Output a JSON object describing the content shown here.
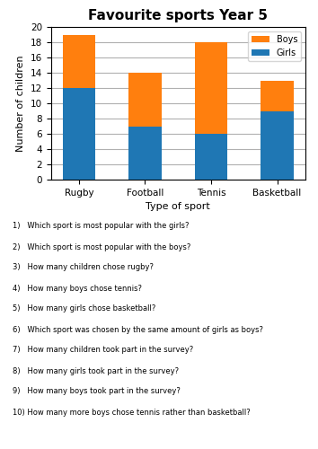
{
  "chart_data": {
    "type": "bar",
    "title": "Favourite sports Year 5",
    "x_label": "Type of sport",
    "y_label": "Number of children",
    "categories": [
      "Rugby",
      "Football",
      "Tennis",
      "Basketball"
    ],
    "series": [
      {
        "name": "Girls",
        "values": [
          12,
          7,
          6,
          9
        ]
      },
      {
        "name": "Boys",
        "values": [
          7,
          7,
          12,
          4
        ]
      }
    ],
    "stacked": true,
    "ylim": [
      0,
      20
    ],
    "yticks": [
      0,
      2,
      4,
      6,
      8,
      10,
      12,
      14,
      16,
      18,
      20
    ],
    "grid": true,
    "legend": "upper right",
    "annotations": [
      "1)   Which sport is most popular with the girls?",
      "2)   Which sport is most popular with the boys?",
      "3)   How many children chose rugby?",
      "4)   How many boys chose tennis?",
      "5)   How many girls chose basketball?",
      "6)   Which sport was chosen by the same amount of girls as boys?",
      "7)   How many children took part in the survey?",
      "8)   How many girls took part in the survey?",
      "9)   How many boys took part in the survey?",
      "10) How many more boys chose tennis rather than basketball?"
    ]
  }
}
